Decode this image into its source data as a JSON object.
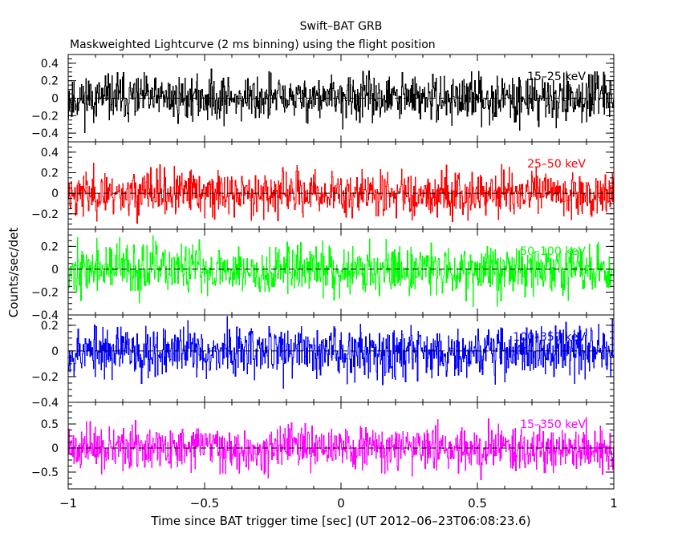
{
  "chart_data": {
    "type": "line",
    "title": "Swift–BAT GRB",
    "subtitle": "Maskweighted Lightcurve (2 ms binning) using the flight position",
    "xlabel": "Time since BAT trigger time [sec] (UT 2012–06–23T06:08:23.6)",
    "ylabel": "Counts/sec/det",
    "xlim": [
      -1.0,
      1.0
    ],
    "x_ticks": [
      -1,
      -0.5,
      0,
      0.5,
      1
    ],
    "x_tick_labels": [
      "−1",
      "−0.5",
      "0",
      "0.5",
      "1"
    ],
    "bin_width_sec": 0.002,
    "panels": [
      {
        "label": "15–25 keV",
        "color": "#000000",
        "ylim": [
          -0.5,
          0.5
        ],
        "y_ticks": [
          -0.4,
          -0.2,
          0,
          0.2,
          0.4
        ],
        "y_tick_labels": [
          "−0.4",
          "−0.2",
          "0",
          "0.2",
          "0.4"
        ],
        "noise_sigma": 0.13,
        "seed": 11
      },
      {
        "label": "25–50 keV",
        "color": "#ff0000",
        "ylim": [
          -0.35,
          0.5
        ],
        "y_ticks": [
          -0.2,
          0,
          0.2,
          0.4
        ],
        "y_tick_labels": [
          "−0.2",
          "0",
          "0.2",
          "0.4"
        ],
        "noise_sigma": 0.11,
        "seed": 23
      },
      {
        "label": "50–100 keV",
        "color": "#00ff00",
        "ylim": [
          -0.4,
          0.35
        ],
        "y_ticks": [
          -0.4,
          -0.2,
          0,
          0.2
        ],
        "y_tick_labels": [
          "−0.4",
          "−0.2",
          "0",
          "0.2"
        ],
        "noise_sigma": 0.11,
        "seed": 37
      },
      {
        "label": "100–350 keV",
        "color": "#0000ff",
        "ylim": [
          -0.4,
          0.28
        ],
        "y_ticks": [
          -0.4,
          -0.2,
          0,
          0.2
        ],
        "y_tick_labels": [
          "−0.4",
          "−0.2",
          "0",
          "0.2"
        ],
        "noise_sigma": 0.1,
        "seed": 53
      },
      {
        "label": "15–350 keV",
        "color": "#ff00ff",
        "ylim": [
          -0.85,
          0.95
        ],
        "y_ticks": [
          -0.5,
          0,
          0.5
        ],
        "y_tick_labels": [
          "−0.5",
          "0",
          "0.5"
        ],
        "noise_sigma": 0.22,
        "seed": 71
      }
    ]
  }
}
